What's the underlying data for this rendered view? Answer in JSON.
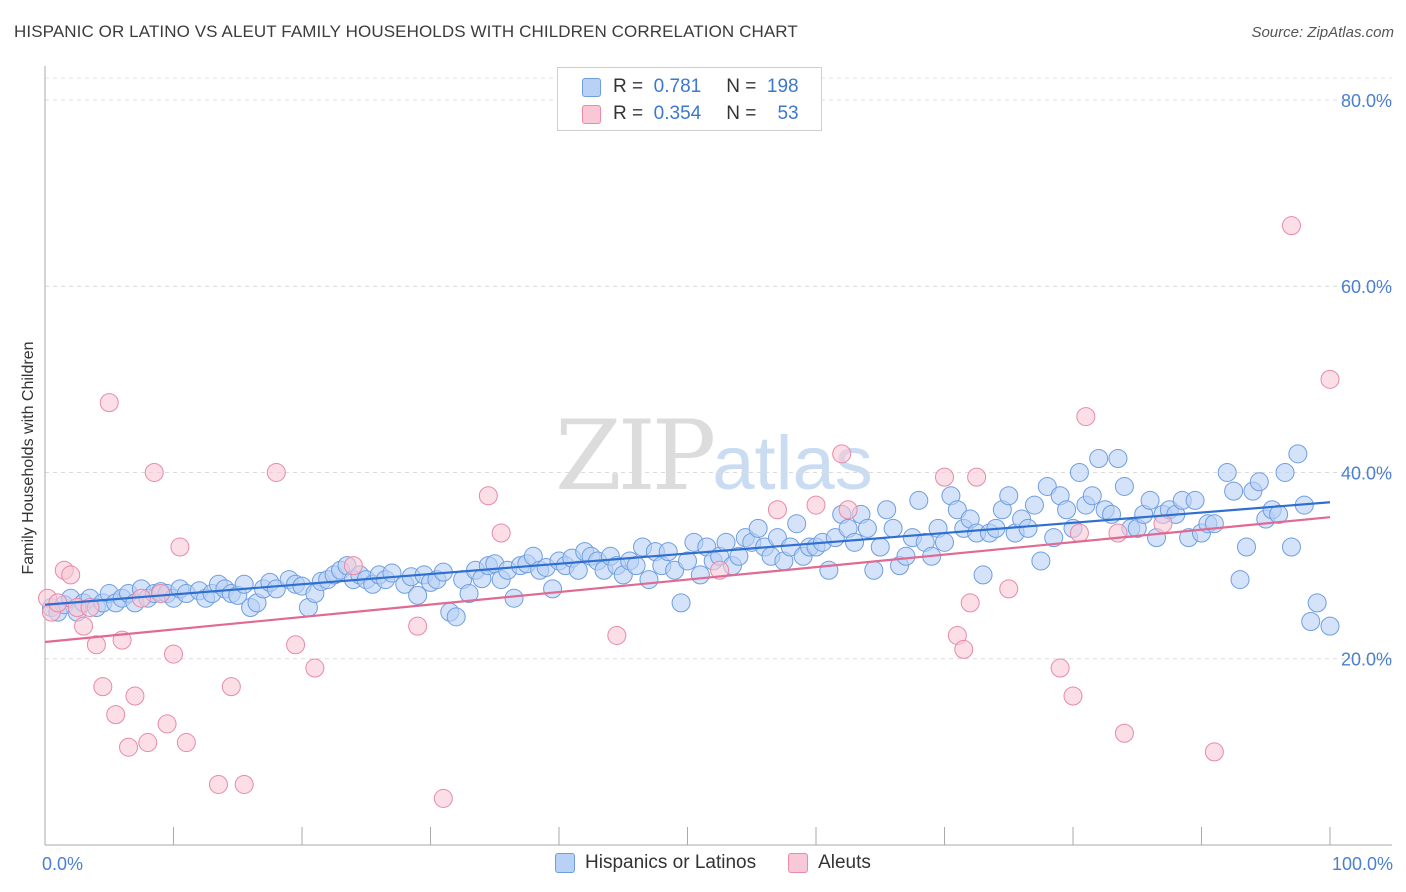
{
  "title": "HISPANIC OR LATINO VS ALEUT FAMILY HOUSEHOLDS WITH CHILDREN CORRELATION CHART",
  "source": "Source: ZipAtlas.com",
  "watermark": {
    "zip": "ZIP",
    "atlas": "atlas"
  },
  "legend": {
    "rows": [
      {
        "r_label": "R =",
        "r_value": "0.781",
        "n_label": "N =",
        "n_value": "198",
        "color": "#b8d1f5",
        "border": "#6f9ee0"
      },
      {
        "r_label": "R =",
        "r_value": "0.354",
        "n_label": "N =",
        "n_value": "53",
        "color": "#f8c8d6",
        "border": "#e88aa8"
      }
    ]
  },
  "bottom_legend": [
    "Hispanics or Latinos",
    "Aleuts"
  ],
  "chart_data": {
    "type": "scatter",
    "title": "HISPANIC OR LATINO VS ALEUT FAMILY HOUSEHOLDS WITH CHILDREN CORRELATION CHART",
    "xlabel": "",
    "ylabel": "Family Households with Children",
    "xlim": [
      0,
      100
    ],
    "ylim": [
      0,
      83
    ],
    "x_tick_labels": [
      "0.0%",
      "100.0%"
    ],
    "y_ticks": [
      20,
      40,
      60,
      80
    ],
    "y_tick_labels": [
      "20.0%",
      "40.0%",
      "60.0%",
      "80.0%"
    ],
    "grid": true,
    "series": [
      {
        "name": "Hispanics or Latinos",
        "color": "#b8d1f5",
        "edge": "#6f9ee0",
        "trend": {
          "x": [
            0,
            100
          ],
          "y": [
            25.8,
            36.8
          ],
          "color": "#2f6fd0"
        },
        "points": [
          [
            0.5,
            25.5
          ],
          [
            1,
            25
          ],
          [
            1.5,
            25.8
          ],
          [
            2,
            26.5
          ],
          [
            2.5,
            25
          ],
          [
            3,
            26
          ],
          [
            3.5,
            26.5
          ],
          [
            4,
            25.5
          ],
          [
            4.5,
            26
          ],
          [
            5,
            27
          ],
          [
            5.5,
            26
          ],
          [
            6,
            26.5
          ],
          [
            6.5,
            27
          ],
          [
            7,
            26
          ],
          [
            7.5,
            27.5
          ],
          [
            8,
            26.5
          ],
          [
            8.5,
            27
          ],
          [
            9,
            27.2
          ],
          [
            9.5,
            27
          ],
          [
            10,
            26.5
          ],
          [
            10.5,
            27.5
          ],
          [
            11,
            27
          ],
          [
            12,
            27.3
          ],
          [
            12.5,
            26.5
          ],
          [
            13,
            27
          ],
          [
            13.5,
            28
          ],
          [
            14,
            27.5
          ],
          [
            14.5,
            27
          ],
          [
            15,
            26.8
          ],
          [
            15.5,
            28
          ],
          [
            16,
            25.5
          ],
          [
            16.5,
            26
          ],
          [
            17,
            27.5
          ],
          [
            17.5,
            28.2
          ],
          [
            18,
            27.5
          ],
          [
            19,
            28.5
          ],
          [
            19.5,
            28
          ],
          [
            20,
            27.8
          ],
          [
            20.5,
            25.5
          ],
          [
            21,
            27
          ],
          [
            21.5,
            28.3
          ],
          [
            22,
            28.5
          ],
          [
            22.5,
            29
          ],
          [
            23,
            29.5
          ],
          [
            23.5,
            30
          ],
          [
            24,
            28.5
          ],
          [
            24.5,
            29
          ],
          [
            25,
            28.5
          ],
          [
            25.5,
            28
          ],
          [
            26,
            29
          ],
          [
            26.5,
            28.5
          ],
          [
            27,
            29.2
          ],
          [
            28,
            28
          ],
          [
            28.5,
            28.8
          ],
          [
            29,
            26.8
          ],
          [
            29.5,
            29
          ],
          [
            30,
            28.2
          ],
          [
            30.5,
            28.5
          ],
          [
            31,
            29.3
          ],
          [
            31.5,
            25
          ],
          [
            32,
            24.5
          ],
          [
            32.5,
            28.5
          ],
          [
            33,
            27
          ],
          [
            33.5,
            29.5
          ],
          [
            34,
            28.6
          ],
          [
            34.5,
            30
          ],
          [
            35,
            30.2
          ],
          [
            35.5,
            28.5
          ],
          [
            36,
            29.5
          ],
          [
            36.5,
            26.5
          ],
          [
            37,
            30
          ],
          [
            37.5,
            30.2
          ],
          [
            38,
            31
          ],
          [
            38.5,
            29.5
          ],
          [
            39,
            29.8
          ],
          [
            39.5,
            27.5
          ],
          [
            40,
            30.5
          ],
          [
            40.5,
            30
          ],
          [
            41,
            30.8
          ],
          [
            41.5,
            29.5
          ],
          [
            42,
            31.5
          ],
          [
            42.5,
            31
          ],
          [
            43,
            30.5
          ],
          [
            43.5,
            29.5
          ],
          [
            44,
            31
          ],
          [
            44.5,
            30
          ],
          [
            45,
            29
          ],
          [
            45.5,
            30.5
          ],
          [
            46,
            30
          ],
          [
            46.5,
            32
          ],
          [
            47,
            28.5
          ],
          [
            47.5,
            31.5
          ],
          [
            48,
            30
          ],
          [
            48.5,
            31.5
          ],
          [
            49,
            29.5
          ],
          [
            49.5,
            26
          ],
          [
            50,
            30.5
          ],
          [
            50.5,
            32.5
          ],
          [
            51,
            29
          ],
          [
            51.5,
            32
          ],
          [
            52,
            30.5
          ],
          [
            52.5,
            31
          ],
          [
            53,
            32.5
          ],
          [
            53.5,
            30
          ],
          [
            54,
            31
          ],
          [
            54.5,
            33
          ],
          [
            55,
            32.5
          ],
          [
            55.5,
            34
          ],
          [
            56,
            32
          ],
          [
            56.5,
            31
          ],
          [
            57,
            33
          ],
          [
            57.5,
            30.5
          ],
          [
            58,
            32
          ],
          [
            58.5,
            34.5
          ],
          [
            59,
            31
          ],
          [
            59.5,
            32
          ],
          [
            60,
            32
          ],
          [
            60.5,
            32.5
          ],
          [
            61,
            29.5
          ],
          [
            61.5,
            33
          ],
          [
            62,
            35.5
          ],
          [
            62.5,
            34
          ],
          [
            63,
            32.5
          ],
          [
            63.5,
            35.5
          ],
          [
            64,
            34
          ],
          [
            64.5,
            29.5
          ],
          [
            65,
            32
          ],
          [
            65.5,
            36
          ],
          [
            66,
            34
          ],
          [
            66.5,
            30
          ],
          [
            67,
            31
          ],
          [
            67.5,
            33
          ],
          [
            68,
            37
          ],
          [
            68.5,
            32.5
          ],
          [
            69,
            31
          ],
          [
            69.5,
            34
          ],
          [
            70,
            32.5
          ],
          [
            70.5,
            37.5
          ],
          [
            71,
            36
          ],
          [
            71.5,
            34
          ],
          [
            72,
            35
          ],
          [
            72.5,
            33.5
          ],
          [
            73,
            29
          ],
          [
            73.5,
            33.5
          ],
          [
            74,
            34
          ],
          [
            74.5,
            36
          ],
          [
            75,
            37.5
          ],
          [
            75.5,
            33.5
          ],
          [
            76,
            35
          ],
          [
            76.5,
            34
          ],
          [
            77,
            36.5
          ],
          [
            77.5,
            30.5
          ],
          [
            78,
            38.5
          ],
          [
            78.5,
            33
          ],
          [
            79,
            37.5
          ],
          [
            79.5,
            36
          ],
          [
            80,
            34
          ],
          [
            80.5,
            40
          ],
          [
            81,
            36.5
          ],
          [
            81.5,
            37.5
          ],
          [
            82,
            41.5
          ],
          [
            82.5,
            36
          ],
          [
            83,
            35.5
          ],
          [
            83.5,
            41.5
          ],
          [
            84,
            38.5
          ],
          [
            84.5,
            34
          ],
          [
            85,
            34
          ],
          [
            85.5,
            35.5
          ],
          [
            86,
            37
          ],
          [
            86.5,
            33
          ],
          [
            87,
            35.5
          ],
          [
            87.5,
            36
          ],
          [
            88,
            35.5
          ],
          [
            88.5,
            37
          ],
          [
            89,
            33
          ],
          [
            89.5,
            37
          ],
          [
            90,
            33.5
          ],
          [
            90.5,
            34.5
          ],
          [
            91,
            34.5
          ],
          [
            92,
            40
          ],
          [
            92.5,
            38
          ],
          [
            93,
            28.5
          ],
          [
            93.5,
            32
          ],
          [
            94,
            38
          ],
          [
            94.5,
            39
          ],
          [
            95,
            35
          ],
          [
            95.5,
            36
          ],
          [
            96,
            35.5
          ],
          [
            96.5,
            40
          ],
          [
            97,
            32
          ],
          [
            97.5,
            42
          ],
          [
            98,
            36.5
          ],
          [
            98.5,
            24
          ],
          [
            99,
            26
          ],
          [
            100,
            23.5
          ]
        ]
      },
      {
        "name": "Aleuts",
        "color": "#f8c8d6",
        "edge": "#e88aa8",
        "trend": {
          "x": [
            0,
            100
          ],
          "y": [
            21.8,
            35.2
          ],
          "color": "#e06a92"
        },
        "points": [
          [
            0.2,
            26.5
          ],
          [
            0.5,
            25
          ],
          [
            1,
            26
          ],
          [
            1.5,
            29.5
          ],
          [
            2,
            29
          ],
          [
            2.5,
            25.5
          ],
          [
            3,
            23.5
          ],
          [
            3.5,
            25.5
          ],
          [
            4,
            21.5
          ],
          [
            4.5,
            17
          ],
          [
            5,
            47.5
          ],
          [
            5.5,
            14
          ],
          [
            6,
            22
          ],
          [
            6.5,
            10.5
          ],
          [
            7,
            16
          ],
          [
            7.5,
            26.5
          ],
          [
            8,
            11
          ],
          [
            8.5,
            40
          ],
          [
            9,
            27
          ],
          [
            9.5,
            13
          ],
          [
            10,
            20.5
          ],
          [
            10.5,
            32
          ],
          [
            11,
            11
          ],
          [
            13.5,
            6.5
          ],
          [
            14.5,
            17
          ],
          [
            15.5,
            6.5
          ],
          [
            18,
            40
          ],
          [
            19.5,
            21.5
          ],
          [
            21,
            19
          ],
          [
            24,
            30
          ],
          [
            29,
            23.5
          ],
          [
            31,
            5
          ],
          [
            34.5,
            37.5
          ],
          [
            35.5,
            33.5
          ],
          [
            44.5,
            22.5
          ],
          [
            52.5,
            29.5
          ],
          [
            57,
            36
          ],
          [
            60,
            36.5
          ],
          [
            62,
            42
          ],
          [
            62.5,
            36
          ],
          [
            70,
            39.5
          ],
          [
            71,
            22.5
          ],
          [
            71.5,
            21
          ],
          [
            72,
            26
          ],
          [
            72.5,
            39.5
          ],
          [
            75,
            27.5
          ],
          [
            79,
            19
          ],
          [
            80,
            16
          ],
          [
            80.5,
            33.5
          ],
          [
            81,
            46
          ],
          [
            83.5,
            33.5
          ],
          [
            84,
            12
          ],
          [
            87,
            34.5
          ],
          [
            91,
            10
          ],
          [
            97,
            66.5
          ],
          [
            100,
            50
          ]
        ]
      }
    ]
  }
}
